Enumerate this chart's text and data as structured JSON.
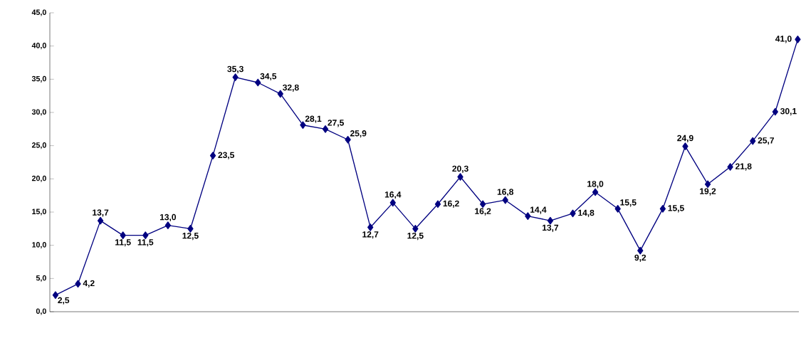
{
  "chart_data": {
    "type": "line",
    "categories": [
      null,
      null,
      null,
      null,
      null,
      null,
      null,
      null,
      null,
      null,
      null,
      null,
      null,
      null,
      null,
      null,
      null,
      null,
      null,
      null,
      null,
      null,
      null,
      null,
      null,
      null,
      null,
      null,
      null,
      null,
      null,
      null,
      null,
      null
    ],
    "series": [
      {
        "color": "#000080",
        "values": [
          2.5,
          4.2,
          13.7,
          11.5,
          11.5,
          13.0,
          12.5,
          23.5,
          35.3,
          34.5,
          32.8,
          28.1,
          27.5,
          25.9,
          12.7,
          16.4,
          12.5,
          16.2,
          20.3,
          16.2,
          16.8,
          14.4,
          13.7,
          14.8,
          18.0,
          15.5,
          9.2,
          15.5,
          24.9,
          19.2,
          21.8,
          25.7,
          30.1,
          41.0
        ],
        "value_labels": [
          "2,5",
          "4,2",
          "13,7",
          "11,5",
          "11,5",
          "13,0",
          "12,5",
          "23,5",
          "35,3",
          "34,5",
          "32,8",
          "28,1",
          "27,5",
          "25,9",
          "12,7",
          "16,4",
          "12,5",
          "16,2",
          "20,3",
          "16,2",
          "16,8",
          "14,4",
          "13,7",
          "14,8",
          "18,0",
          "15,5",
          "9,2",
          "15,5",
          "24,9",
          "19,2",
          "21,8",
          "25,7",
          "30,1",
          "41,0"
        ]
      }
    ],
    "ylim": [
      0,
      45
    ],
    "yticks": [
      {
        "value": 0,
        "label": "0,0"
      },
      {
        "value": 5,
        "label": "5,0"
      },
      {
        "value": 10,
        "label": "10,0"
      },
      {
        "value": 15,
        "label": "15,0"
      },
      {
        "value": 20,
        "label": "20,0"
      },
      {
        "value": 25,
        "label": "25,0"
      },
      {
        "value": 30,
        "label": "30,0"
      },
      {
        "value": 35,
        "label": "35,0"
      },
      {
        "value": 40,
        "label": "40,0"
      },
      {
        "value": 45,
        "label": "45,0"
      }
    ],
    "marker": "diamond",
    "line_style": "solid",
    "grid": false,
    "tick_labels": "y"
  }
}
